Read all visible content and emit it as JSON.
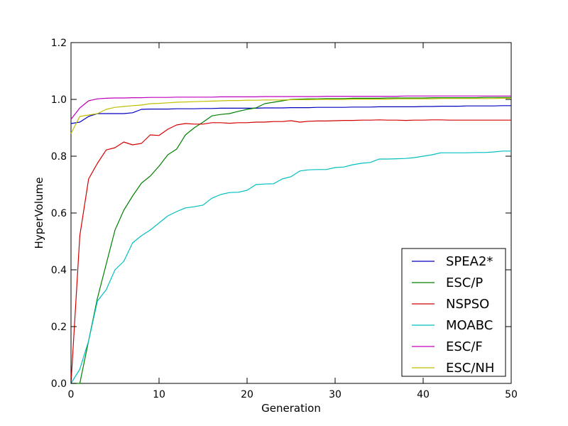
{
  "chart_data": {
    "type": "line",
    "title": "",
    "xlabel": "Generation",
    "ylabel": "HyperVolume",
    "xlim": [
      0,
      50
    ],
    "ylim": [
      0.0,
      1.2
    ],
    "x_ticks": [
      0,
      10,
      20,
      30,
      40,
      50
    ],
    "x_tick_labels": [
      "0",
      "10",
      "20",
      "30",
      "40",
      "50"
    ],
    "y_ticks": [
      0.0,
      0.2,
      0.4,
      0.6,
      0.8,
      1.0,
      1.2
    ],
    "y_tick_labels": [
      "0.0",
      "0.2",
      "0.4",
      "0.6",
      "0.8",
      "1.0",
      "1.2"
    ],
    "grid": false,
    "legend_position": "lower-right",
    "x": [
      0,
      1,
      2,
      3,
      4,
      5,
      6,
      7,
      8,
      9,
      10,
      11,
      12,
      13,
      14,
      15,
      16,
      17,
      18,
      19,
      20,
      21,
      22,
      23,
      24,
      25,
      26,
      27,
      28,
      29,
      30,
      31,
      32,
      33,
      34,
      35,
      36,
      37,
      38,
      39,
      40,
      41,
      42,
      43,
      44,
      45,
      46,
      47,
      48,
      49,
      50
    ],
    "series": [
      {
        "name": "SPEA2*",
        "color": "#0000bf",
        "values": [
          0.915,
          0.92,
          0.94,
          0.95,
          0.95,
          0.95,
          0.95,
          0.953,
          0.965,
          0.966,
          0.966,
          0.966,
          0.967,
          0.967,
          0.967,
          0.968,
          0.968,
          0.969,
          0.969,
          0.969,
          0.969,
          0.969,
          0.97,
          0.97,
          0.97,
          0.971,
          0.971,
          0.971,
          0.972,
          0.972,
          0.972,
          0.972,
          0.973,
          0.973,
          0.973,
          0.974,
          0.974,
          0.974,
          0.974,
          0.974,
          0.975,
          0.975,
          0.976,
          0.976,
          0.976,
          0.977,
          0.977,
          0.977,
          0.977,
          0.978,
          0.978
        ]
      },
      {
        "name": "ESC/P",
        "color": "#008000",
        "values": [
          0.0,
          0.0,
          0.15,
          0.3,
          0.42,
          0.54,
          0.61,
          0.66,
          0.705,
          0.73,
          0.765,
          0.805,
          0.825,
          0.875,
          0.9,
          0.92,
          0.942,
          0.947,
          0.95,
          0.958,
          0.965,
          0.97,
          0.985,
          0.99,
          0.995,
          1.0,
          1.001,
          1.002,
          1.002,
          1.003,
          1.003,
          1.003,
          1.004,
          1.004,
          1.004,
          1.004,
          1.005,
          1.005,
          1.005,
          1.005,
          1.005,
          1.006,
          1.006,
          1.006,
          1.006,
          1.006,
          1.006,
          1.007,
          1.007,
          1.007,
          1.007
        ]
      },
      {
        "name": "NSPSO",
        "color": "#d40000",
        "values": [
          0.0,
          0.52,
          0.72,
          0.775,
          0.822,
          0.83,
          0.85,
          0.84,
          0.845,
          0.875,
          0.873,
          0.895,
          0.91,
          0.915,
          0.913,
          0.913,
          0.918,
          0.918,
          0.916,
          0.918,
          0.918,
          0.92,
          0.92,
          0.922,
          0.922,
          0.925,
          0.92,
          0.923,
          0.924,
          0.924,
          0.925,
          0.926,
          0.926,
          0.927,
          0.927,
          0.928,
          0.927,
          0.927,
          0.926,
          0.927,
          0.927,
          0.928,
          0.928,
          0.927,
          0.927,
          0.927,
          0.927,
          0.927,
          0.927,
          0.927,
          0.927
        ]
      },
      {
        "name": "MOABC",
        "color": "#00bfbf",
        "values": [
          0.0,
          0.05,
          0.15,
          0.29,
          0.33,
          0.4,
          0.43,
          0.495,
          0.52,
          0.54,
          0.565,
          0.59,
          0.605,
          0.618,
          0.622,
          0.628,
          0.652,
          0.665,
          0.672,
          0.673,
          0.68,
          0.7,
          0.702,
          0.703,
          0.72,
          0.728,
          0.748,
          0.752,
          0.753,
          0.753,
          0.76,
          0.762,
          0.77,
          0.775,
          0.778,
          0.79,
          0.79,
          0.791,
          0.792,
          0.795,
          0.8,
          0.805,
          0.812,
          0.812,
          0.812,
          0.812,
          0.813,
          0.813,
          0.815,
          0.818,
          0.818
        ]
      },
      {
        "name": "ESC/F",
        "color": "#bf00bf",
        "values": [
          0.93,
          0.97,
          0.995,
          1.002,
          1.004,
          1.005,
          1.005,
          1.006,
          1.006,
          1.007,
          1.007,
          1.007,
          1.008,
          1.008,
          1.008,
          1.008,
          1.008,
          1.009,
          1.009,
          1.009,
          1.009,
          1.009,
          1.01,
          1.01,
          1.01,
          1.01,
          1.01,
          1.01,
          1.01,
          1.011,
          1.011,
          1.011,
          1.011,
          1.011,
          1.011,
          1.011,
          1.011,
          1.011,
          1.012,
          1.012,
          1.012,
          1.012,
          1.012,
          1.012,
          1.012,
          1.012,
          1.012,
          1.012,
          1.012,
          1.012,
          1.012
        ]
      },
      {
        "name": "ESC/NH",
        "color": "#bfbf00",
        "values": [
          0.88,
          0.94,
          0.945,
          0.95,
          0.965,
          0.972,
          0.975,
          0.978,
          0.98,
          0.985,
          0.986,
          0.988,
          0.99,
          0.991,
          0.992,
          0.993,
          0.994,
          0.995,
          0.996,
          0.996,
          0.997,
          0.997,
          0.998,
          0.998,
          0.998,
          0.999,
          0.999,
          0.999,
          1.0,
          1.0,
          1.0,
          1.0,
          1.001,
          1.001,
          1.001,
          1.001,
          1.001,
          1.002,
          1.002,
          1.002,
          1.002,
          1.002,
          1.003,
          1.003,
          1.003,
          1.003,
          1.003,
          1.003,
          1.003,
          1.004,
          1.004
        ]
      }
    ]
  }
}
